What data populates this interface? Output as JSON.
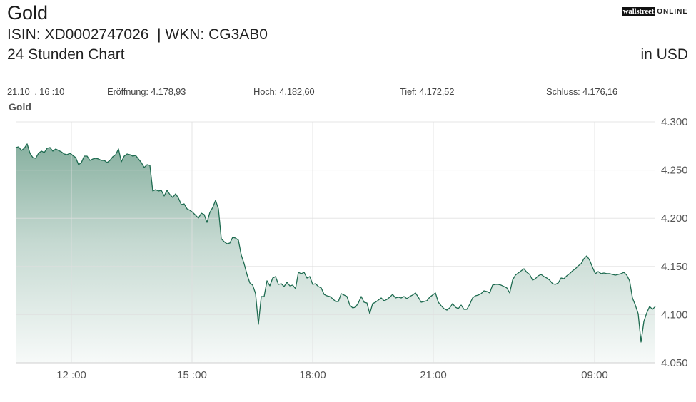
{
  "header": {
    "title": "Gold",
    "identifiers": "ISIN: XD0002747026  | WKN: CG3AB0",
    "subtitle": "24 Stunden Chart",
    "currency": "in USD"
  },
  "logo": {
    "part1": "wallstreet",
    "part2": "ONLINE"
  },
  "quote": {
    "timestamp": "21.10  . 16 :10",
    "open": {
      "label": "Eröffnung:",
      "value": "4.178,93"
    },
    "high": {
      "label": "Hoch:",
      "value": "4.182,60"
    },
    "low": {
      "label": "Tief:",
      "value": "4.172,52"
    },
    "close": {
      "label": "Schluss:",
      "value": "4.176,16"
    }
  },
  "colors": {
    "line": "#1e6b50",
    "fill_top": "#7aa795",
    "fill_mid": "#c5d9d1",
    "fill_bottom": "#f7faf9"
  },
  "chart_data": {
    "type": "area",
    "title": "",
    "xlabel": "",
    "ylabel": "",
    "grid": true,
    "legend": "top-left",
    "ylim": [
      4050,
      4300
    ],
    "y_ticks": [
      {
        "value": 4300,
        "label": "4.300"
      },
      {
        "value": 4250,
        "label": "4.250"
      },
      {
        "value": 4200,
        "label": "4.200"
      },
      {
        "value": 4150,
        "label": "4.150"
      },
      {
        "value": 4100,
        "label": "4.100"
      },
      {
        "value": 4050,
        "label": "4.050"
      }
    ],
    "x_ticks": [
      {
        "label": "12 :00",
        "sample_index": 19.5
      },
      {
        "label": "15 :00",
        "sample_index": 61.75
      },
      {
        "label": "18:00",
        "sample_index": 104
      },
      {
        "label": "21:00",
        "sample_index": 146.25
      },
      {
        "label": "09:00",
        "sample_index": 202.75
      }
    ],
    "series": [
      {
        "name": "Gold",
        "values": [
          4273.4,
          4274.1,
          4270.4,
          4272.6,
          4277.1,
          4267.5,
          4263.0,
          4262.3,
          4267.5,
          4269.7,
          4268.2,
          4272.6,
          4273.4,
          4269.7,
          4271.9,
          4270.4,
          4268.9,
          4266.7,
          4266.0,
          4267.5,
          4265.2,
          4263.0,
          4255.6,
          4257.8,
          4264.5,
          4264.5,
          4260.1,
          4261.5,
          4262.3,
          4261.5,
          4260.1,
          4260.1,
          4257.8,
          4260.1,
          4263.8,
          4266.0,
          4271.9,
          4258.6,
          4264.5,
          4266.7,
          4266.0,
          4264.5,
          4265.2,
          4261.5,
          4257.8,
          4252.7,
          4255.6,
          4254.9,
          4228.3,
          4229.7,
          4228.3,
          4229.0,
          4223.1,
          4229.0,
          4224.6,
          4221.6,
          4225.3,
          4220.9,
          4214.2,
          4214.9,
          4209.8,
          4208.3,
          4206.1,
          4203.1,
          4200.2,
          4205.3,
          4203.9,
          4195.7,
          4206.1,
          4211.2,
          4218.6,
          4209.8,
          4178.7,
          4175.7,
          4173.5,
          4174.3,
          4180.2,
          4179.4,
          4177.2,
          4161.7,
          4152.8,
          4141.7,
          4132.9,
          4130.6,
          4121.8,
          4090.0,
          4118.8,
          4118.8,
          4135.1,
          4129.9,
          4138.0,
          4139.5,
          4131.4,
          4132.1,
          4129.2,
          4133.6,
          4129.9,
          4130.6,
          4126.9,
          4143.9,
          4142.5,
          4143.9,
          4138.0,
          4139.5,
          4131.4,
          4132.1,
          4129.2,
          4127.7,
          4121.0,
          4119.5,
          4118.8,
          4116.6,
          4113.6,
          4113.6,
          4121.8,
          4120.3,
          4118.8,
          4109.9,
          4107.0,
          4107.7,
          4112.1,
          4118.8,
          4112.9,
          4112.1,
          4101.0,
          4111.4,
          4112.9,
          4115.1,
          4117.3,
          4114.4,
          4115.8,
          4118.1,
          4121.0,
          4117.3,
          4118.1,
          4117.3,
          4118.8,
          4116.6,
          4118.8,
          4120.3,
          4122.5,
          4118.1,
          4112.9,
          4113.6,
          4114.4,
          4118.1,
          4120.3,
          4122.5,
          4112.9,
          4109.2,
          4106.2,
          4104.7,
          4107.0,
          4111.4,
          4107.7,
          4106.2,
          4109.9,
          4105.5,
          4105.5,
          4110.7,
          4117.3,
          4119.5,
          4120.3,
          4121.8,
          4124.7,
          4124.0,
          4122.5,
          4130.6,
          4131.4,
          4131.4,
          4130.6,
          4129.2,
          4127.7,
          4122.5,
          4135.8,
          4141.0,
          4143.2,
          4145.4,
          4147.6,
          4143.9,
          4141.7,
          4135.8,
          4137.3,
          4140.3,
          4141.7,
          4139.5,
          4138.0,
          4135.8,
          4132.1,
          4131.4,
          4132.9,
          4138.0,
          4137.3,
          4140.3,
          4142.5,
          4145.4,
          4147.6,
          4150.6,
          4152.8,
          4158.0,
          4161.0,
          4156.5,
          4149.1,
          4142.5,
          4144.7,
          4142.5,
          4143.2,
          4142.5,
          4142.5,
          4141.7,
          4141.0,
          4141.7,
          4142.5,
          4143.9,
          4141.0,
          4135.1,
          4117.3,
          4109.9,
          4101.0,
          4071.5,
          4092.9,
          4101.8,
          4108.4,
          4105.5,
          4108.4
        ]
      }
    ]
  }
}
